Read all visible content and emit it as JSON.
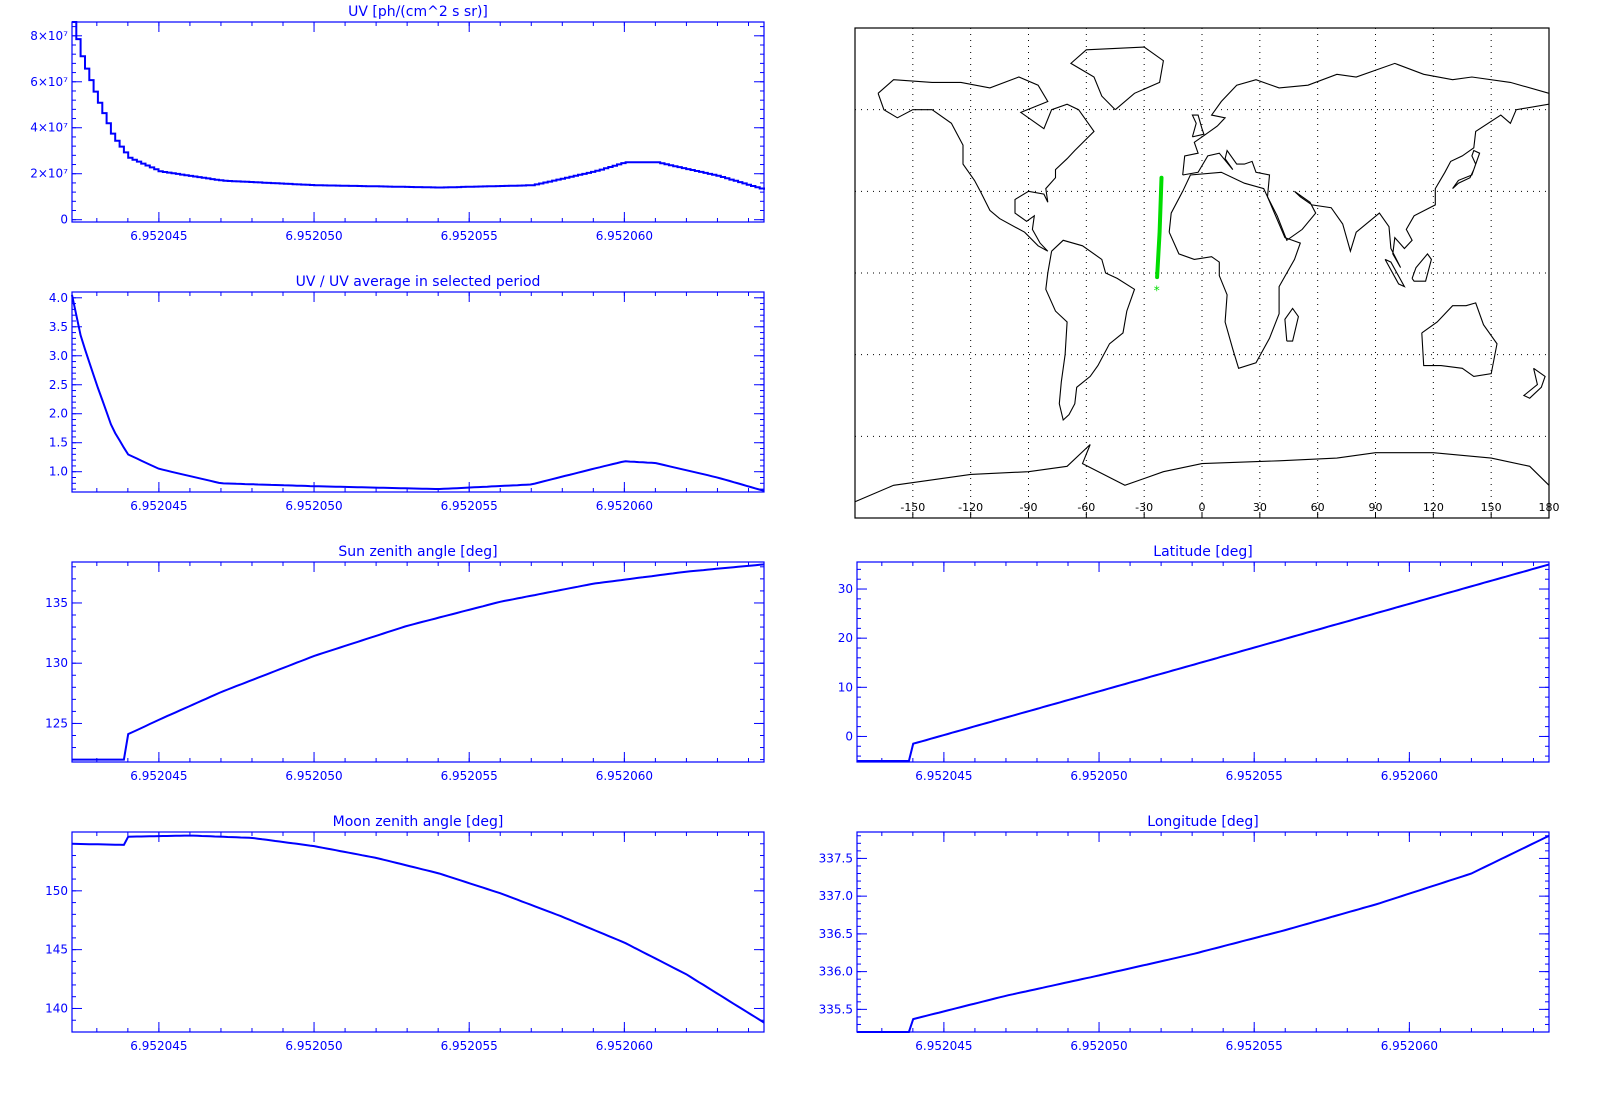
{
  "colors": {
    "axis": "#0000ff",
    "line": "#0000ff",
    "track": "#00dd00",
    "coast": "#000000",
    "grid": "#000000"
  },
  "chart_data": [
    {
      "id": "uv",
      "type": "line",
      "step": true,
      "title": "UV [ph/(cm^2 s sr)]",
      "xlabel": "",
      "ylabel": "",
      "xlim": [
        6.9520422,
        6.9520645
      ],
      "ylim": [
        -1000000,
        86000000
      ],
      "xticks": [
        6.952045,
        6.95205,
        6.952055,
        6.95206
      ],
      "xtick_labels": [
        "6.952045",
        "6.952050",
        "6.952055",
        "6.952060"
      ],
      "yticks": [
        0,
        20000000,
        40000000,
        60000000,
        80000000
      ],
      "ytick_labels": [
        "0",
        "2×10⁷",
        "4×10⁷",
        "6×10⁷",
        "8×10⁷"
      ],
      "series": [
        {
          "x": [
            6.9520422,
            6.9520425,
            6.952043,
            6.9520435,
            6.952044,
            6.952045,
            6.952047,
            6.95205,
            6.952054,
            6.952057,
            6.952059,
            6.95206,
            6.952061,
            6.952063,
            6.9520645
          ],
          "y": [
            86000000,
            70000000,
            52000000,
            36000000,
            27000000,
            21000000,
            17000000,
            15000000,
            14000000,
            15000000,
            21000000,
            25000000,
            25000000,
            19000000,
            13000000
          ]
        }
      ]
    },
    {
      "id": "uv-ratio",
      "type": "line",
      "title": "UV / UV average in selected period",
      "xlabel": "",
      "ylabel": "",
      "xlim": [
        6.9520422,
        6.9520645
      ],
      "ylim": [
        0.65,
        4.1
      ],
      "xticks": [
        6.952045,
        6.95205,
        6.952055,
        6.95206
      ],
      "xtick_labels": [
        "6.952045",
        "6.952050",
        "6.952055",
        "6.952060"
      ],
      "yticks": [
        1.0,
        1.5,
        2.0,
        2.5,
        3.0,
        3.5,
        4.0
      ],
      "ytick_labels": [
        "1.0",
        "1.5",
        "2.0",
        "2.5",
        "3.0",
        "3.5",
        "4.0"
      ],
      "series": [
        {
          "x": [
            6.9520422,
            6.9520425,
            6.952043,
            6.9520435,
            6.952044,
            6.952045,
            6.952047,
            6.95205,
            6.952054,
            6.952057,
            6.952059,
            6.95206,
            6.952061,
            6.952063,
            6.9520645
          ],
          "y": [
            4.05,
            3.3,
            2.5,
            1.75,
            1.3,
            1.05,
            0.8,
            0.75,
            0.7,
            0.78,
            1.05,
            1.18,
            1.15,
            0.9,
            0.67
          ]
        }
      ]
    },
    {
      "id": "sun-zenith",
      "type": "line",
      "title": "Sun zenith angle [deg]",
      "xlabel": "",
      "ylabel": "",
      "xlim": [
        6.9520422,
        6.9520645
      ],
      "ylim": [
        121.8,
        138.4
      ],
      "xticks": [
        6.952045,
        6.95205,
        6.952055,
        6.95206
      ],
      "xtick_labels": [
        "6.952045",
        "6.952050",
        "6.952055",
        "6.952060"
      ],
      "yticks": [
        125,
        130,
        135
      ],
      "ytick_labels": [
        "125",
        "130",
        "135"
      ],
      "series": [
        {
          "x": [
            6.9520422,
            6.9520439,
            6.952044,
            6.952045,
            6.952047,
            6.95205,
            6.952053,
            6.952056,
            6.952059,
            6.952062,
            6.9520645
          ],
          "y": [
            122.0,
            122.0,
            124.1,
            125.3,
            127.6,
            130.6,
            133.1,
            135.1,
            136.6,
            137.6,
            138.2
          ]
        }
      ]
    },
    {
      "id": "latitude",
      "type": "line",
      "title": "Latitude [deg]",
      "xlabel": "",
      "ylabel": "",
      "xlim": [
        6.9520422,
        6.9520645
      ],
      "ylim": [
        -5.2,
        35.5
      ],
      "xticks": [
        6.952045,
        6.95205,
        6.952055,
        6.95206
      ],
      "xtick_labels": [
        "6.952045",
        "6.952050",
        "6.952055",
        "6.952060"
      ],
      "yticks": [
        0,
        10,
        20,
        30
      ],
      "ytick_labels": [
        "0",
        "10",
        "20",
        "30"
      ],
      "series": [
        {
          "x": [
            6.9520422,
            6.9520439,
            6.952044,
            6.9520645
          ],
          "y": [
            -5.0,
            -5.0,
            -1.5,
            35.0
          ]
        }
      ]
    },
    {
      "id": "moon-zenith",
      "type": "line",
      "title": "Moon zenith angle [deg]",
      "xlabel": "",
      "ylabel": "",
      "xlim": [
        6.9520422,
        6.9520645
      ],
      "ylim": [
        138.0,
        155.0
      ],
      "xticks": [
        6.952045,
        6.95205,
        6.952055,
        6.95206
      ],
      "xtick_labels": [
        "6.952045",
        "6.952050",
        "6.952055",
        "6.952060"
      ],
      "yticks": [
        140,
        145,
        150
      ],
      "ytick_labels": [
        "140",
        "145",
        "150"
      ],
      "series": [
        {
          "x": [
            6.9520422,
            6.9520439,
            6.952044,
            6.952046,
            6.952048,
            6.95205,
            6.952052,
            6.952054,
            6.952056,
            6.952058,
            6.95206,
            6.952062,
            6.9520645
          ],
          "y": [
            154.0,
            153.9,
            154.6,
            154.7,
            154.5,
            153.8,
            152.8,
            151.5,
            149.8,
            147.8,
            145.6,
            142.9,
            138.8
          ]
        }
      ]
    },
    {
      "id": "longitude",
      "type": "line",
      "title": "Longitude [deg]",
      "xlabel": "",
      "ylabel": "",
      "xlim": [
        6.9520422,
        6.9520645
      ],
      "ylim": [
        335.2,
        337.85
      ],
      "xticks": [
        6.952045,
        6.95205,
        6.952055,
        6.95206
      ],
      "xtick_labels": [
        "6.952045",
        "6.952050",
        "6.952055",
        "6.952060"
      ],
      "yticks": [
        335.5,
        336.0,
        336.5,
        337.0,
        337.5
      ],
      "ytick_labels": [
        "335.5",
        "336.0",
        "336.5",
        "337.0",
        "337.5"
      ],
      "series": [
        {
          "x": [
            6.9520422,
            6.9520439,
            6.952044,
            6.952047,
            6.95205,
            6.952053,
            6.952056,
            6.952059,
            6.952062,
            6.9520645
          ],
          "y": [
            335.2,
            335.2,
            335.37,
            335.68,
            335.95,
            336.23,
            336.55,
            336.9,
            337.3,
            337.8
          ]
        }
      ]
    },
    {
      "id": "track-map",
      "type": "scatter",
      "projection": "equirectangular",
      "title": "",
      "grid": true,
      "xlim": [
        -180,
        180
      ],
      "ylim": [
        -90,
        90
      ],
      "xticks": [
        -150,
        -120,
        -90,
        -60,
        -30,
        0,
        30,
        60,
        90,
        120,
        150,
        180
      ],
      "xtick_labels": [
        "-150",
        "-120",
        "-90",
        "-60",
        "-30",
        "0",
        "30",
        "60",
        "90",
        "120",
        "150",
        "180"
      ],
      "grid_lat": [
        -60,
        -30,
        0,
        30,
        60
      ],
      "track": {
        "lon": [
          -23.3,
          -22.0,
          -21.0
        ],
        "lat": [
          -1.5,
          15.0,
          35.0
        ]
      },
      "track_start_marker": {
        "lon": -23.5,
        "lat": -5.0,
        "symbol": "*"
      }
    }
  ]
}
